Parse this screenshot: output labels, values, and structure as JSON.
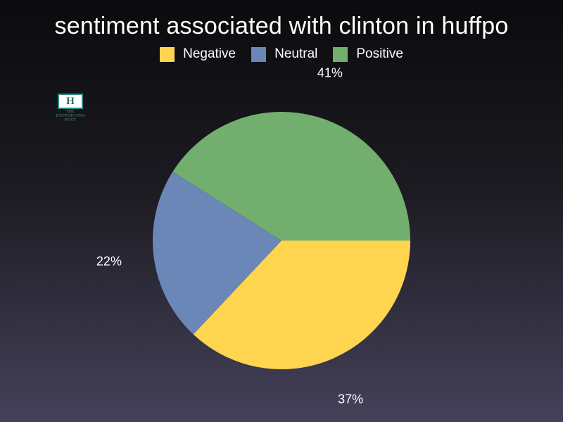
{
  "chart_data": {
    "type": "pie",
    "title": "sentiment associated with clinton in huffpo",
    "legend_position": "top",
    "slices": [
      {
        "name": "Negative",
        "value": 37,
        "label": "37%",
        "color": "#ffd54f"
      },
      {
        "name": "Neutral",
        "value": 22,
        "label": "22%",
        "color": "#6a87b7"
      },
      {
        "name": "Positive",
        "value": 41,
        "label": "41%",
        "color": "#72ae6e"
      }
    ]
  },
  "logo": {
    "mark": "H",
    "text_lines": [
      "THE",
      "HUFFINGTON",
      "POST"
    ]
  }
}
